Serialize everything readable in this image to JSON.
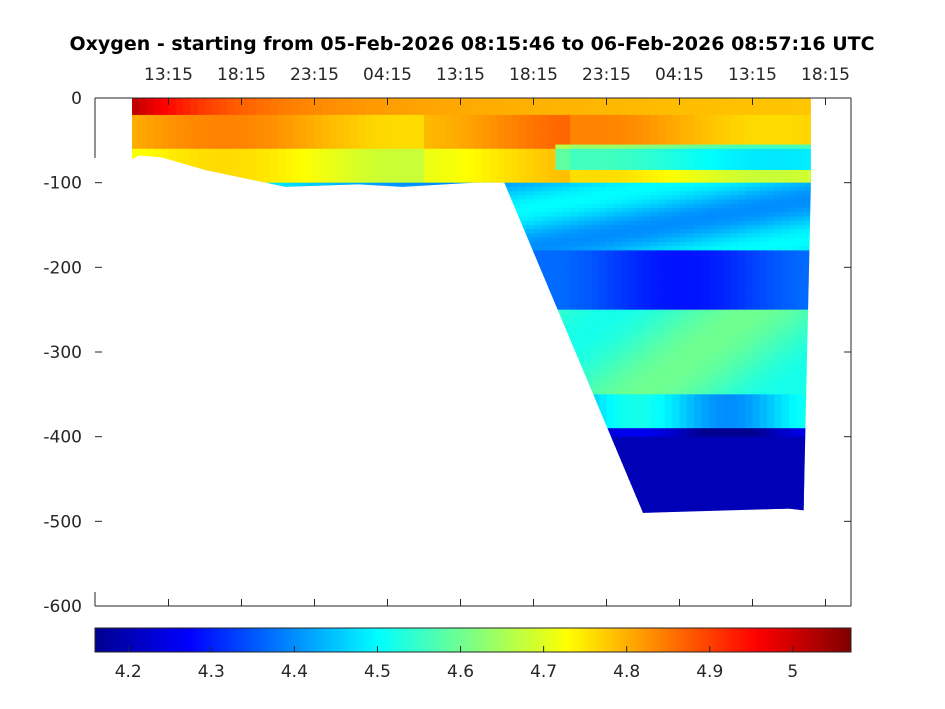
{
  "chart_data": {
    "type": "heatmap",
    "title": "Oxygen - starting from 05-Feb-2026 08:15:46 to 06-Feb-2026 08:57:16 UTC",
    "xlabel": "",
    "ylabel": "",
    "x_tick_labels": [
      "13:15",
      "18:15",
      "23:15",
      "04:15",
      "13:15",
      "18:15",
      "23:15",
      "04:15",
      "13:15",
      "18:15"
    ],
    "y_ticks": [
      0,
      -100,
      -200,
      -300,
      -400,
      -500,
      -600
    ],
    "ylim": [
      -600,
      0
    ],
    "colorbar": {
      "colormap": "jet",
      "ticks": [
        4.2,
        4.3,
        4.4,
        4.5,
        4.6,
        4.7,
        4.8,
        4.9,
        5
      ],
      "range": [
        4.16,
        5.07
      ],
      "placement": "bottom"
    },
    "profile_bottom_depth": {
      "hours": [
        0,
        0.5,
        2,
        5,
        10.5,
        15.5,
        18.5,
        23.5,
        25.5,
        35,
        45,
        46,
        46.5
      ],
      "depth": [
        -72,
        -68,
        -70,
        -85,
        -105,
        -102,
        -105,
        -100,
        -100,
        -490,
        -485,
        -487,
        -100
      ]
    },
    "bands": [
      {
        "depth": [
          0,
          -20
        ],
        "value": 4.82,
        "note": "surface layer, up to ~5.0 at start"
      },
      {
        "depth": [
          -20,
          -60
        ],
        "value": 4.8
      },
      {
        "depth": [
          -60,
          -100
        ],
        "value": 4.72
      },
      {
        "depth": [
          -100,
          -180
        ],
        "value": 4.45
      },
      {
        "depth": [
          -180,
          -250
        ],
        "value": 4.33
      },
      {
        "depth": [
          -250,
          -350
        ],
        "value": 4.55
      },
      {
        "depth": [
          -350,
          -390
        ],
        "value": 4.45
      },
      {
        "depth": [
          -390,
          -500
        ],
        "value": 4.2
      }
    ],
    "grid": false
  }
}
